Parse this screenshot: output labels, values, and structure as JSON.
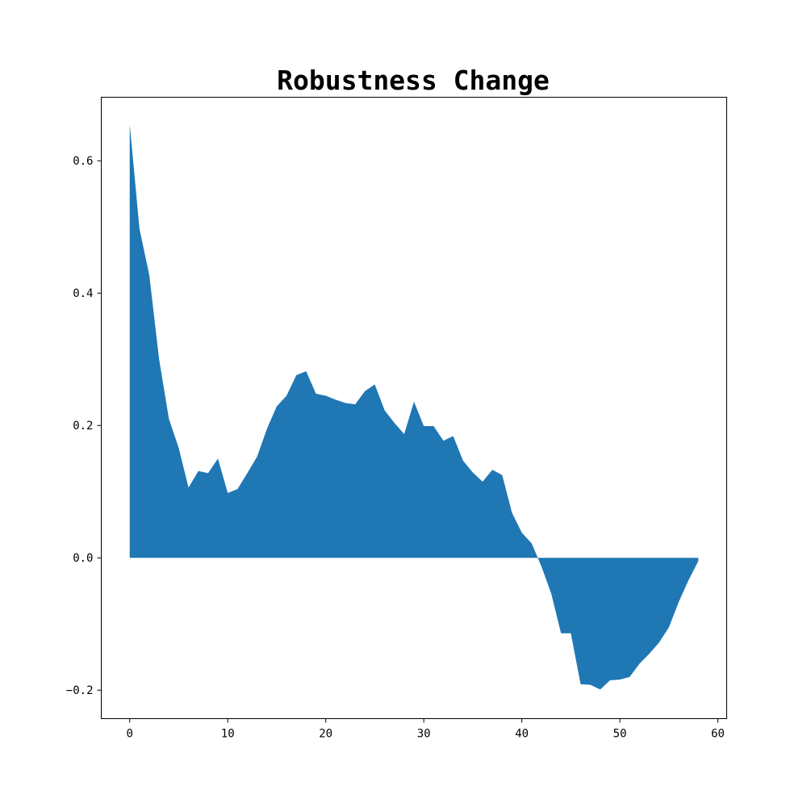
{
  "chart_data": {
    "type": "area",
    "title": "Robustness Change",
    "xlabel": "",
    "ylabel": "",
    "xlim": [
      -2.9,
      60.9
    ],
    "ylim": [
      -0.243,
      0.696
    ],
    "xticks": [
      0,
      10,
      20,
      30,
      40,
      50,
      60
    ],
    "xtick_labels": [
      "0",
      "10",
      "20",
      "30",
      "40",
      "50",
      "60"
    ],
    "yticks": [
      -0.2,
      0.0,
      0.2,
      0.4,
      0.6
    ],
    "ytick_labels": [
      "−0.2",
      "0.0",
      "0.2",
      "0.4",
      "0.6"
    ],
    "grid": false,
    "color": "#1f77b4",
    "x": [
      0,
      1,
      2,
      3,
      4,
      5,
      6,
      7,
      8,
      9,
      10,
      11,
      12,
      13,
      14,
      15,
      16,
      17,
      18,
      19,
      20,
      21,
      22,
      23,
      24,
      25,
      26,
      27,
      28,
      29,
      30,
      31,
      32,
      33,
      34,
      35,
      36,
      37,
      38,
      39,
      40,
      41,
      42,
      43,
      44,
      45,
      46,
      47,
      48,
      49,
      50,
      51,
      52,
      53,
      54,
      55,
      56,
      57,
      58
    ],
    "values": [
      0.655,
      0.497,
      0.427,
      0.3,
      0.21,
      0.166,
      0.106,
      0.131,
      0.128,
      0.15,
      0.098,
      0.104,
      0.128,
      0.153,
      0.195,
      0.229,
      0.245,
      0.276,
      0.282,
      0.248,
      0.245,
      0.239,
      0.234,
      0.232,
      0.252,
      0.262,
      0.223,
      0.204,
      0.187,
      0.236,
      0.199,
      0.199,
      0.177,
      0.184,
      0.147,
      0.129,
      0.115,
      0.133,
      0.125,
      0.068,
      0.038,
      0.022,
      -0.013,
      -0.054,
      -0.114,
      -0.114,
      -0.191,
      -0.192,
      -0.199,
      -0.185,
      -0.184,
      -0.18,
      -0.16,
      -0.145,
      -0.128,
      -0.105,
      -0.067,
      -0.034,
      -0.005
    ]
  }
}
